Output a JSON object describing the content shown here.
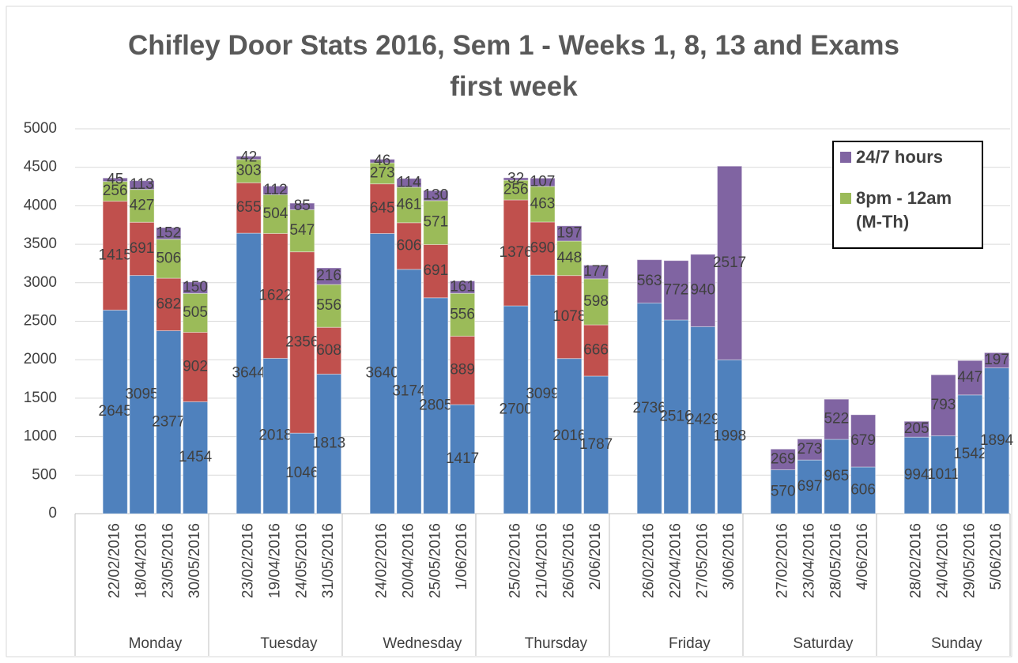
{
  "chart_data": {
    "type": "stacked_bar",
    "title": "Chifley Door Stats 2016, Sem 1 - Weeks 1, 8, 13 and Exams first week",
    "groups": [
      "Monday",
      "Tuesday",
      "Wednesday",
      "Thursday",
      "Friday",
      "Saturday",
      "Sunday"
    ],
    "categories": [
      "22/02/2016",
      "18/04/2016",
      "23/05/2016",
      "30/05/2016",
      "23/02/2016",
      "19/04/2016",
      "24/05/2016",
      "31/05/2016",
      "24/02/2016",
      "20/04/2016",
      "25/05/2016",
      "1/06/2016",
      "25/02/2016",
      "21/04/2016",
      "26/05/2016",
      "2/06/2016",
      "26/02/2016",
      "22/04/2016",
      "27/05/2016",
      "3/06/2016",
      "27/02/2016",
      "23/04/2016",
      "28/05/2016",
      "4/06/2016",
      "28/02/2016",
      "24/04/2016",
      "29/05/2016",
      "5/06/2016"
    ],
    "series": [
      {
        "color": "#4f81bd",
        "values": [
          2645,
          3095,
          2377,
          1454,
          3644,
          2018,
          1046,
          1813,
          3640,
          3174,
          2805,
          1417,
          2700,
          3099,
          2016,
          1787,
          2736,
          2516,
          2429,
          1998,
          570,
          697,
          965,
          606,
          994,
          1011,
          1542,
          1894
        ]
      },
      {
        "color": "#c0504d",
        "values": [
          1415,
          691,
          682,
          902,
          655,
          1622,
          2356,
          608,
          645,
          606,
          691,
          889,
          1376,
          690,
          1078,
          666,
          null,
          null,
          null,
          null,
          null,
          null,
          null,
          null,
          null,
          null,
          null,
          null
        ]
      },
      {
        "name": "8pm - 12am (M-Th)",
        "color": "#9bbb59",
        "values": [
          256,
          427,
          506,
          505,
          303,
          504,
          547,
          556,
          273,
          461,
          571,
          556,
          256,
          463,
          448,
          598,
          null,
          null,
          null,
          null,
          null,
          null,
          null,
          null,
          null,
          null,
          null,
          null
        ]
      },
      {
        "name": "24/7 hours",
        "color": "#8064a2",
        "values": [
          45,
          113,
          152,
          150,
          42,
          112,
          85,
          216,
          46,
          114,
          130,
          161,
          32,
          107,
          197,
          177,
          563,
          772,
          940,
          2517,
          269,
          273,
          522,
          679,
          205,
          793,
          447,
          197
        ]
      }
    ],
    "ylim": [
      0,
      5000
    ],
    "yticks": [
      0,
      500,
      1000,
      1500,
      2000,
      2500,
      3000,
      3500,
      4000,
      4500,
      5000
    ],
    "grid": true,
    "legend": "top-right"
  }
}
